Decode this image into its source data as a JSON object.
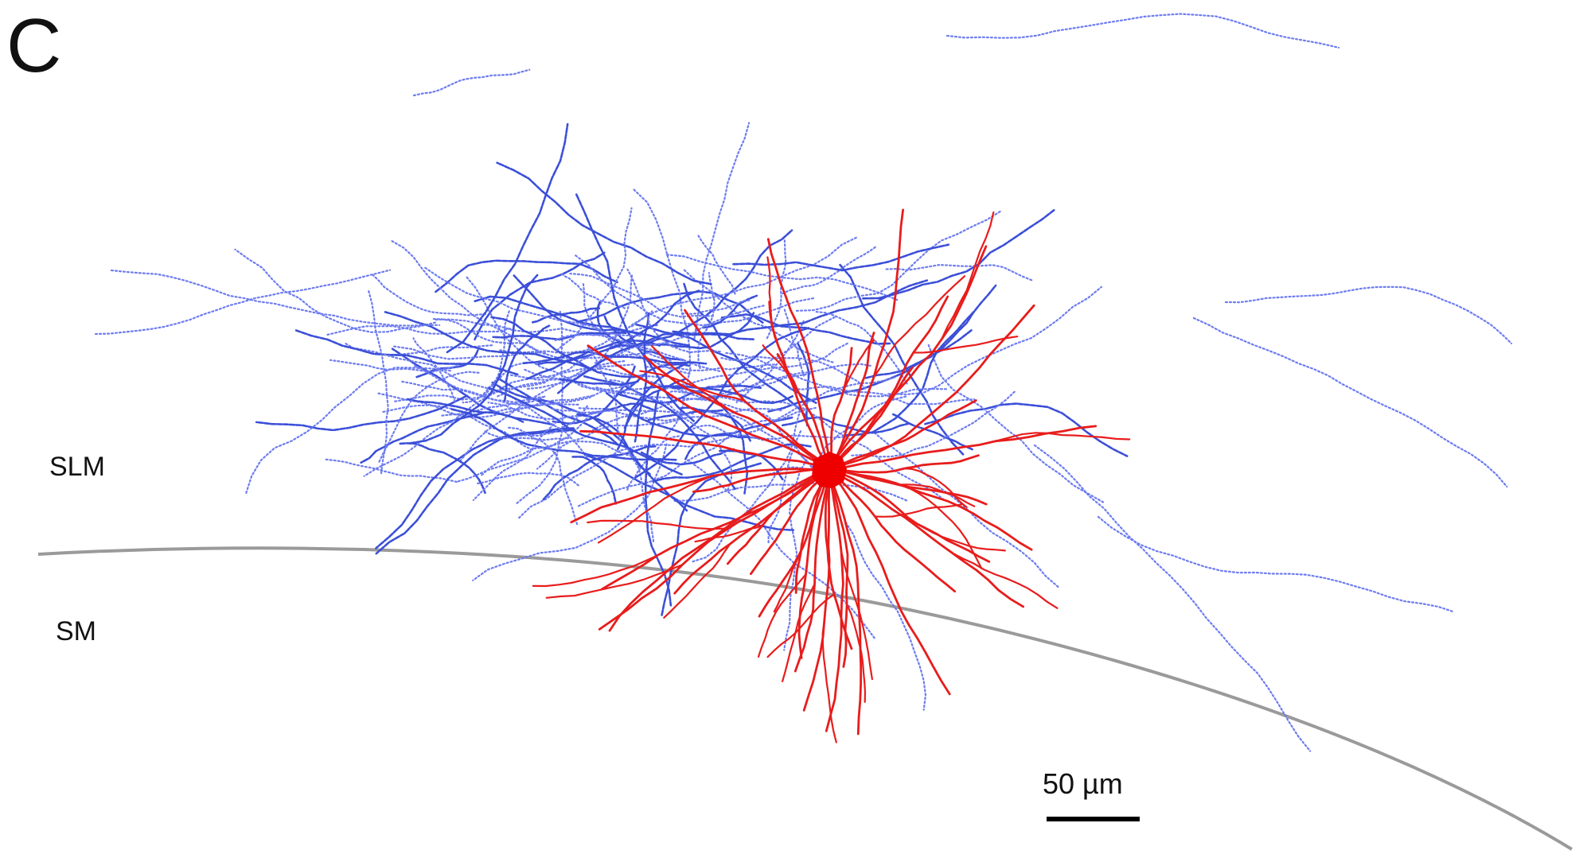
{
  "panel_label": "C",
  "layers": {
    "upper": "SLM",
    "lower": "SM"
  },
  "scale_bar": {
    "label": "50 µm"
  },
  "colors": {
    "axon": "#3b4fd8",
    "axon_light": "#6d7cf0",
    "dendrite": "#e81c1c",
    "soma": "#ee0000",
    "boundary": "#9a9a9a"
  },
  "morphology": {
    "axon_segments": 180,
    "dendrite_segments": 40
  }
}
